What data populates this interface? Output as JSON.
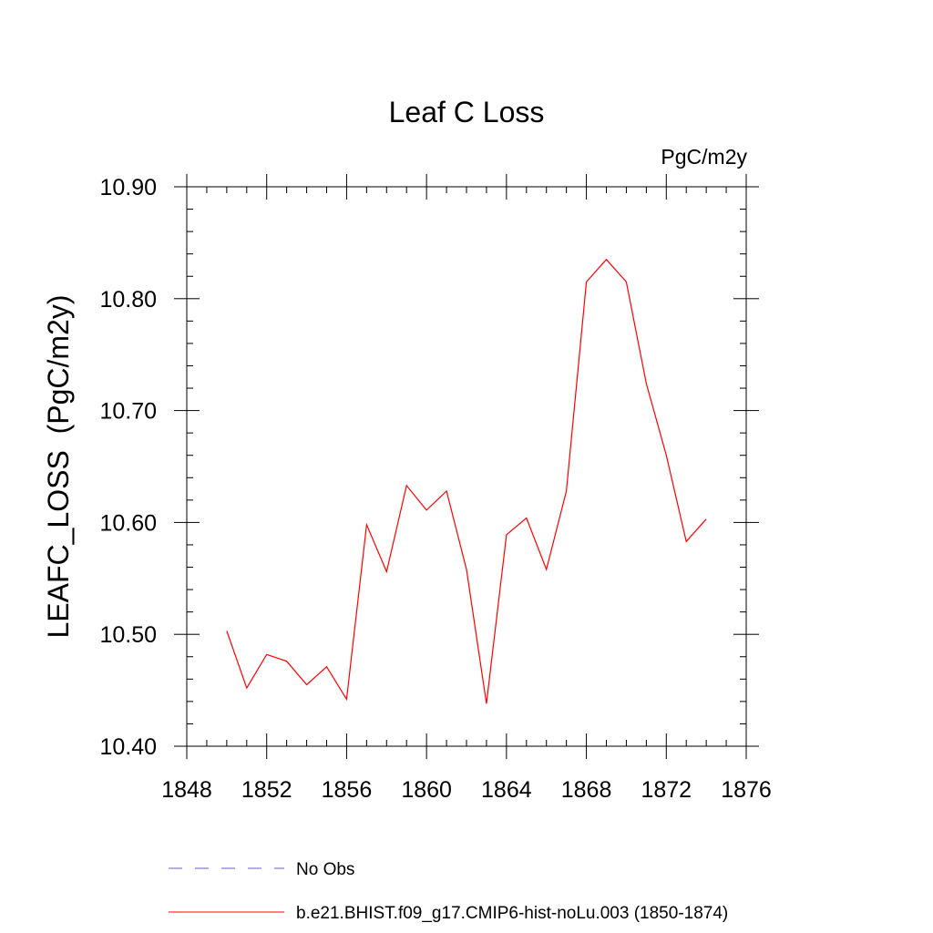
{
  "chart_data": {
    "type": "line",
    "title": "Leaf C Loss",
    "units_label": "PgC/m2y",
    "xlabel": "",
    "ylabel": "LEAFC_LOSS  (PgC/m2y)",
    "xlim": [
      1848,
      1876
    ],
    "ylim": [
      10.4,
      10.9
    ],
    "x_ticks": [
      1848,
      1852,
      1856,
      1860,
      1864,
      1868,
      1872,
      1876
    ],
    "x_tick_labels": [
      "1848",
      "1852",
      "1856",
      "1860",
      "1864",
      "1868",
      "1872",
      "1876"
    ],
    "y_ticks": [
      10.4,
      10.5,
      10.6,
      10.7,
      10.8,
      10.9
    ],
    "y_tick_labels": [
      "10.40",
      "10.50",
      "10.60",
      "10.70",
      "10.80",
      "10.90"
    ],
    "x_minor_step": 1,
    "y_minor_step": 0.02,
    "grid": false,
    "legend_position": "bottom",
    "series": [
      {
        "name": "No Obs",
        "color": "#6a5acd",
        "dash": true,
        "x": [],
        "values": []
      },
      {
        "name": "b.e21.BHIST.f09_g17.CMIP6-hist-noLu.003 (1850-1874)",
        "color": "#ff0000",
        "dash": false,
        "x": [
          1850,
          1851,
          1852,
          1853,
          1854,
          1855,
          1856,
          1857,
          1858,
          1859,
          1860,
          1861,
          1862,
          1863,
          1864,
          1865,
          1866,
          1867,
          1868,
          1869,
          1870,
          1871,
          1872,
          1873,
          1874
        ],
        "values": [
          10.503,
          10.452,
          10.482,
          10.476,
          10.455,
          10.471,
          10.442,
          10.598,
          10.556,
          10.633,
          10.611,
          10.628,
          10.558,
          10.438,
          10.589,
          10.604,
          10.558,
          10.628,
          10.815,
          10.835,
          10.815,
          10.724,
          10.66,
          10.583,
          10.603
        ]
      }
    ]
  }
}
